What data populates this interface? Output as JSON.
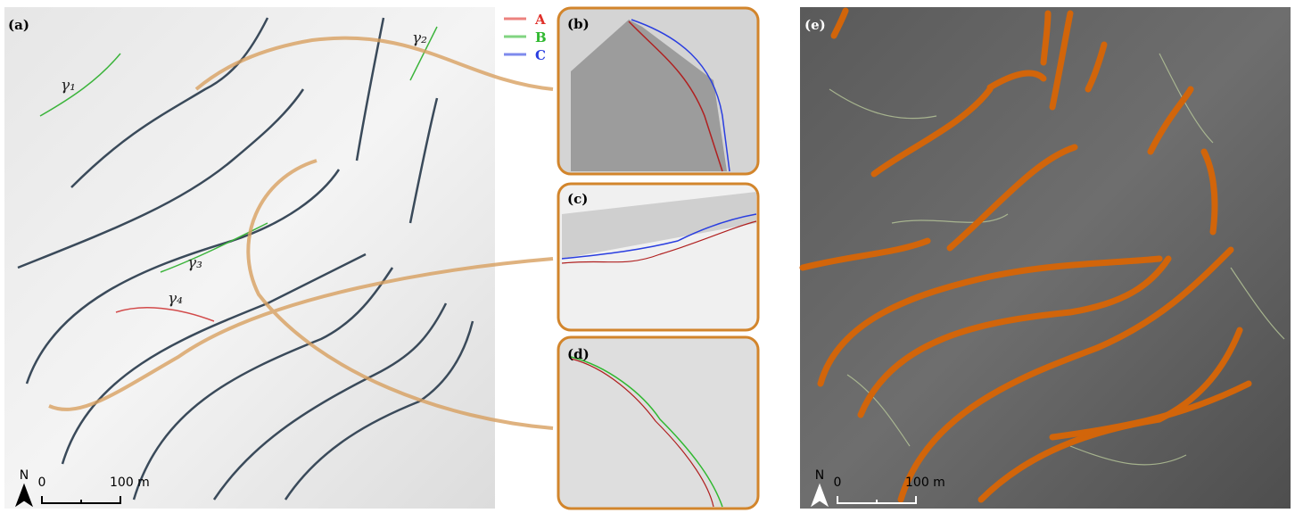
{
  "panels": {
    "a": "(a)",
    "b": "(b)",
    "c": "(c)",
    "d": "(d)",
    "e": "(e)"
  },
  "legend": [
    {
      "name": "A",
      "color": "#e0302a"
    },
    {
      "name": "B",
      "color": "#2fb82f"
    },
    {
      "name": "C",
      "color": "#2a3ee0"
    }
  ],
  "curve_labels": [
    "γ₁",
    "γ₂",
    "γ₃",
    "γ₄"
  ],
  "scale_bars": [
    {
      "north": "N",
      "start": "0",
      "end": "100 m"
    },
    {
      "north": "N",
      "start": "0",
      "end": "100 m"
    }
  ]
}
